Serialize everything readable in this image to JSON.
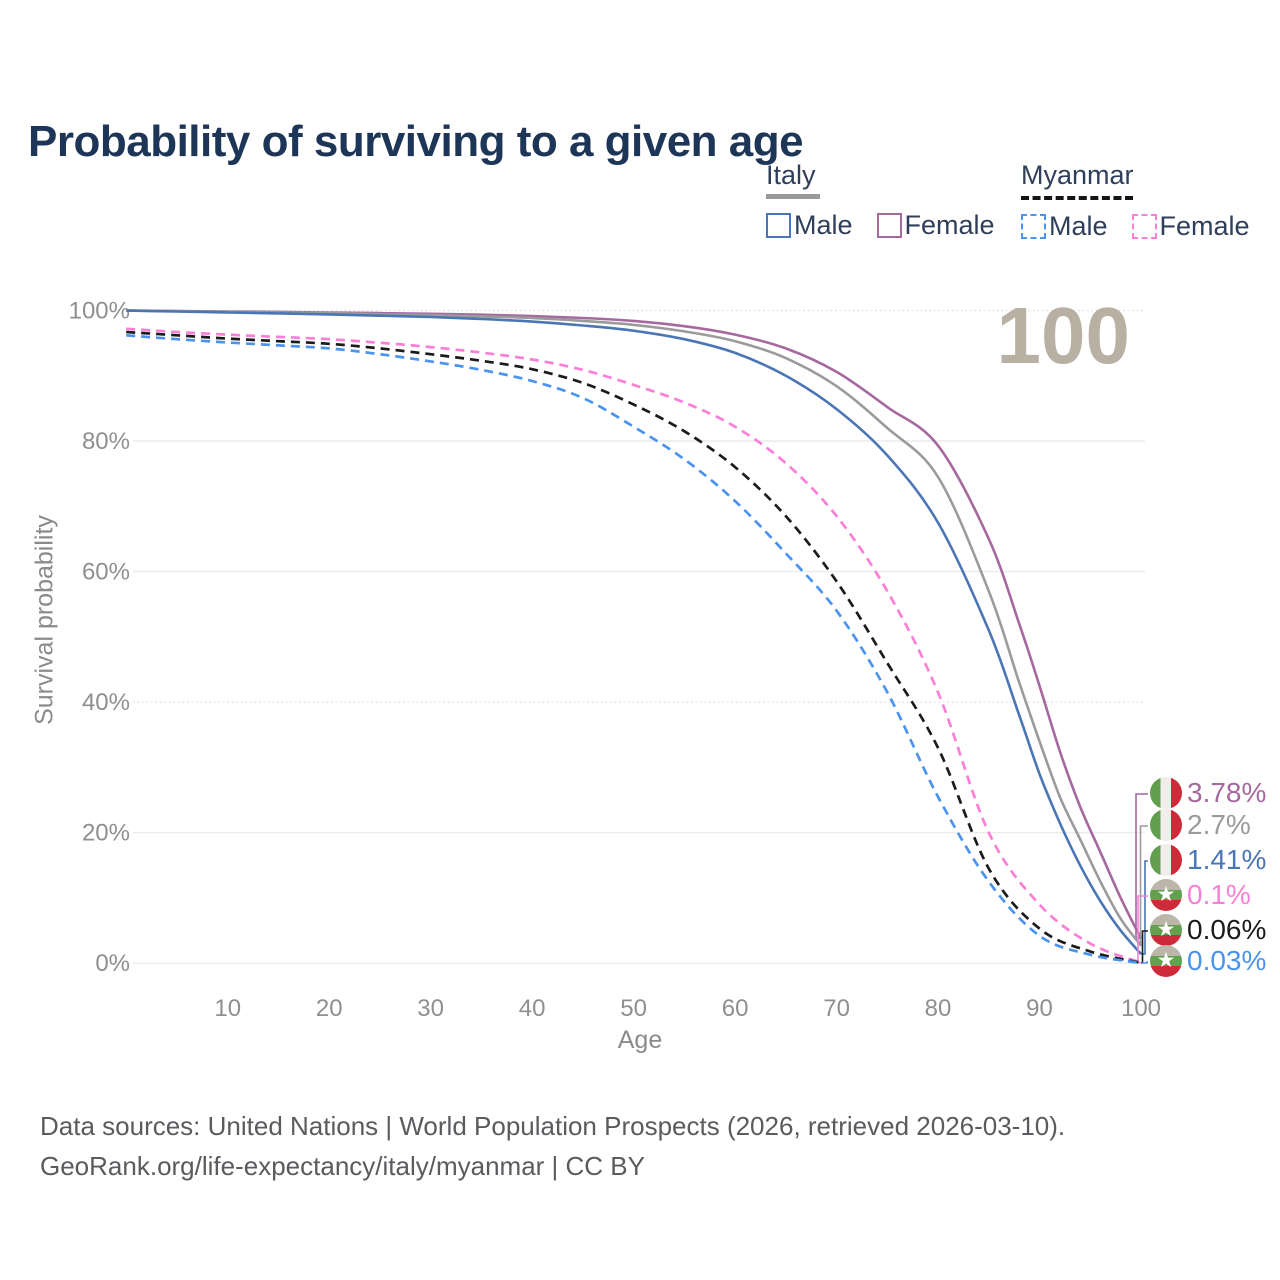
{
  "title": "Probability of surviving to a given age",
  "legend": {
    "groups": [
      {
        "label": "Italy",
        "line_style": "solid",
        "underline_color": "#9a9a9a",
        "items": [
          {
            "label": "Male",
            "color": "#4b76b5",
            "dash": false
          },
          {
            "label": "Female",
            "color": "#a5689f",
            "dash": false
          }
        ]
      },
      {
        "label": "Myanmar",
        "line_style": "dashed",
        "underline_color": "#151515",
        "items": [
          {
            "label": "Male",
            "color": "#4a93ee",
            "dash": true
          },
          {
            "label": "Female",
            "color": "#fa7fd7",
            "dash": true
          }
        ]
      }
    ]
  },
  "axes": {
    "x": {
      "title": "Age",
      "ticks": [
        "10",
        "20",
        "30",
        "40",
        "50",
        "60",
        "70",
        "80",
        "90",
        "100"
      ],
      "range": [
        0,
        100
      ]
    },
    "y": {
      "title": "Survival probability",
      "ticks": [
        "100%",
        "80%",
        "60%",
        "40%",
        "20%",
        "0%"
      ],
      "range": [
        0,
        100
      ]
    }
  },
  "footer": {
    "line1": "Data sources: United Nations | World Population Prospects (2026, retrieved 2026-03-10).",
    "line2": "GeoRank.org/life-expectancy/italy/myanmar | CC BY"
  },
  "chart_data": {
    "type": "line",
    "title": "Probability of surviving to a given age",
    "xlabel": "Age",
    "ylabel": "Survival probability",
    "xlim": [
      0,
      100
    ],
    "ylim": [
      0,
      100
    ],
    "grid": "horizontal",
    "watermark": "100",
    "legend_position": "top-right",
    "series": [
      {
        "id": "italy-female",
        "country": "Italy",
        "flag": "it",
        "style": "solid",
        "color": "#a5689f",
        "end_label": "3.78%",
        "points": [
          [
            0,
            100
          ],
          [
            5,
            99.93
          ],
          [
            10,
            99.85
          ],
          [
            15,
            99.78
          ],
          [
            20,
            99.7
          ],
          [
            25,
            99.6
          ],
          [
            30,
            99.5
          ],
          [
            35,
            99.35
          ],
          [
            40,
            99.15
          ],
          [
            45,
            98.85
          ],
          [
            50,
            98.4
          ],
          [
            55,
            97.6
          ],
          [
            60,
            96.3
          ],
          [
            65,
            94.2
          ],
          [
            70,
            90.6
          ],
          [
            75,
            85.2
          ],
          [
            80,
            79.3
          ],
          [
            85,
            65
          ],
          [
            88,
            52
          ],
          [
            90,
            42.5
          ],
          [
            92,
            32.5
          ],
          [
            94,
            24
          ],
          [
            96,
            17
          ],
          [
            98,
            10
          ],
          [
            100,
            3.78
          ]
        ]
      },
      {
        "id": "italy-both",
        "country": "Italy",
        "flag": "it",
        "style": "solid",
        "color": "#9b9b9b",
        "end_label": "2.7%",
        "points": [
          [
            0,
            100
          ],
          [
            5,
            99.9
          ],
          [
            10,
            99.8
          ],
          [
            15,
            99.7
          ],
          [
            20,
            99.6
          ],
          [
            25,
            99.45
          ],
          [
            30,
            99.3
          ],
          [
            35,
            99.1
          ],
          [
            40,
            98.85
          ],
          [
            45,
            98.4
          ],
          [
            50,
            97.8
          ],
          [
            55,
            96.8
          ],
          [
            60,
            95.3
          ],
          [
            65,
            92.7
          ],
          [
            70,
            88.4
          ],
          [
            75,
            82
          ],
          [
            80,
            74.5
          ],
          [
            85,
            57
          ],
          [
            88,
            43
          ],
          [
            90,
            34
          ],
          [
            92,
            25.5
          ],
          [
            94,
            19
          ],
          [
            96,
            12.5
          ],
          [
            98,
            6.8
          ],
          [
            100,
            2.7
          ]
        ]
      },
      {
        "id": "italy-male",
        "country": "Italy",
        "flag": "it",
        "style": "solid",
        "color": "#4b76b5",
        "end_label": "1.41%",
        "points": [
          [
            0,
            100
          ],
          [
            5,
            99.85
          ],
          [
            10,
            99.7
          ],
          [
            15,
            99.55
          ],
          [
            20,
            99.4
          ],
          [
            25,
            99.2
          ],
          [
            30,
            99.0
          ],
          [
            35,
            98.7
          ],
          [
            40,
            98.3
          ],
          [
            45,
            97.7
          ],
          [
            50,
            96.9
          ],
          [
            55,
            95.6
          ],
          [
            60,
            93.5
          ],
          [
            65,
            90
          ],
          [
            70,
            84.9
          ],
          [
            75,
            77.8
          ],
          [
            80,
            67.5
          ],
          [
            85,
            51
          ],
          [
            88,
            38
          ],
          [
            90,
            29
          ],
          [
            92,
            21.5
          ],
          [
            94,
            15
          ],
          [
            96,
            9.5
          ],
          [
            98,
            5
          ],
          [
            100,
            1.41
          ]
        ]
      },
      {
        "id": "myanmar-female",
        "country": "Myanmar",
        "flag": "mm",
        "style": "dashed",
        "color": "#fa7fd7",
        "end_label": "0.1%",
        "points": [
          [
            0,
            97.2
          ],
          [
            5,
            96.7
          ],
          [
            10,
            96.3
          ],
          [
            15,
            95.95
          ],
          [
            20,
            95.6
          ],
          [
            25,
            95.05
          ],
          [
            30,
            94.4
          ],
          [
            35,
            93.55
          ],
          [
            40,
            92.5
          ],
          [
            45,
            90.9
          ],
          [
            50,
            88.6
          ],
          [
            55,
            85.9
          ],
          [
            60,
            82.2
          ],
          [
            65,
            76.6
          ],
          [
            70,
            68.5
          ],
          [
            75,
            57
          ],
          [
            80,
            41.5
          ],
          [
            85,
            20
          ],
          [
            90,
            9
          ],
          [
            95,
            3
          ],
          [
            100,
            0.1
          ]
        ]
      },
      {
        "id": "myanmar-both",
        "country": "Myanmar",
        "flag": "mm",
        "style": "dashed",
        "color": "#1b1b1b",
        "end_label": "0.06%",
        "points": [
          [
            0,
            96.7
          ],
          [
            5,
            96.2
          ],
          [
            10,
            95.7
          ],
          [
            15,
            95.3
          ],
          [
            20,
            94.9
          ],
          [
            25,
            94.2
          ],
          [
            30,
            93.3
          ],
          [
            35,
            92.3
          ],
          [
            40,
            91
          ],
          [
            45,
            88.9
          ],
          [
            50,
            85.6
          ],
          [
            55,
            81.5
          ],
          [
            60,
            76
          ],
          [
            65,
            68.5
          ],
          [
            70,
            58.5
          ],
          [
            75,
            46
          ],
          [
            80,
            33
          ],
          [
            85,
            14.5
          ],
          [
            90,
            5.3
          ],
          [
            95,
            1.8
          ],
          [
            100,
            0.06
          ]
        ]
      },
      {
        "id": "myanmar-male",
        "country": "Myanmar",
        "flag": "mm",
        "style": "dashed",
        "color": "#4a93ee",
        "end_label": "0.03%",
        "points": [
          [
            0,
            96.2
          ],
          [
            5,
            95.6
          ],
          [
            10,
            95.1
          ],
          [
            15,
            94.65
          ],
          [
            20,
            94.2
          ],
          [
            25,
            93.3
          ],
          [
            30,
            92.2
          ],
          [
            35,
            90.9
          ],
          [
            40,
            89.2
          ],
          [
            45,
            86.6
          ],
          [
            50,
            82.2
          ],
          [
            55,
            77.2
          ],
          [
            60,
            70.8
          ],
          [
            65,
            62.8
          ],
          [
            70,
            54
          ],
          [
            75,
            41.5
          ],
          [
            80,
            25.5
          ],
          [
            85,
            12.5
          ],
          [
            90,
            4.2
          ],
          [
            95,
            1.3
          ],
          [
            100,
            0.03
          ]
        ]
      }
    ]
  }
}
